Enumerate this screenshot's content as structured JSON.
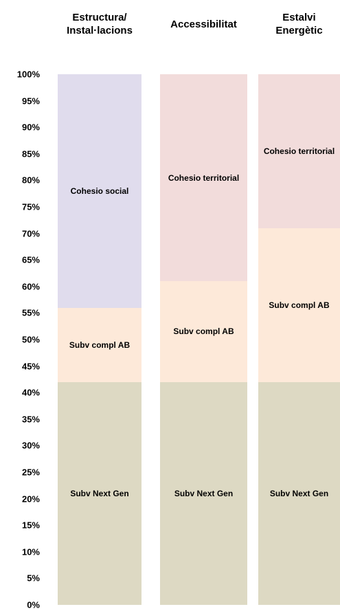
{
  "chart_data": {
    "type": "stacked_bar",
    "categories": [
      "Estructura/\nInstal·lacions",
      "Accessibilitat",
      "Estalvi\nEnergètic"
    ],
    "series": [
      {
        "name": "Subv Next Gen",
        "color": "#ddd9c3",
        "values": [
          42,
          42,
          42
        ]
      },
      {
        "name": "Subv compl AB",
        "color": "#fde9d9",
        "values": [
          14,
          19,
          29
        ]
      },
      {
        "name": "Cohesio social",
        "color": "#e0dced",
        "values": [
          44,
          null,
          null
        ]
      },
      {
        "name": "Cohesio territorial",
        "color": "#f2dcdb",
        "values": [
          null,
          39,
          29
        ]
      }
    ],
    "ylim": [
      0,
      100
    ],
    "yticks": [
      {
        "value": 0,
        "label": "0%"
      },
      {
        "value": 5,
        "label": "5%"
      },
      {
        "value": 10,
        "label": "10%"
      },
      {
        "value": 15,
        "label": "15%"
      },
      {
        "value": 20,
        "label": "20%"
      },
      {
        "value": 25,
        "label": "25%"
      },
      {
        "value": 30,
        "label": "30%"
      },
      {
        "value": 35,
        "label": "35%"
      },
      {
        "value": 40,
        "label": "40%"
      },
      {
        "value": 45,
        "label": "45%"
      },
      {
        "value": 50,
        "label": "50%"
      },
      {
        "value": 55,
        "label": "55%"
      },
      {
        "value": 60,
        "label": "60%"
      },
      {
        "value": 65,
        "label": "65%"
      },
      {
        "value": 70,
        "label": "70%"
      },
      {
        "value": 75,
        "label": "75%"
      },
      {
        "value": 80,
        "label": "80%"
      },
      {
        "value": 85,
        "label": "85%"
      },
      {
        "value": 90,
        "label": "90%"
      },
      {
        "value": 95,
        "label": "95%"
      },
      {
        "value": 100,
        "label": "100%"
      }
    ]
  }
}
